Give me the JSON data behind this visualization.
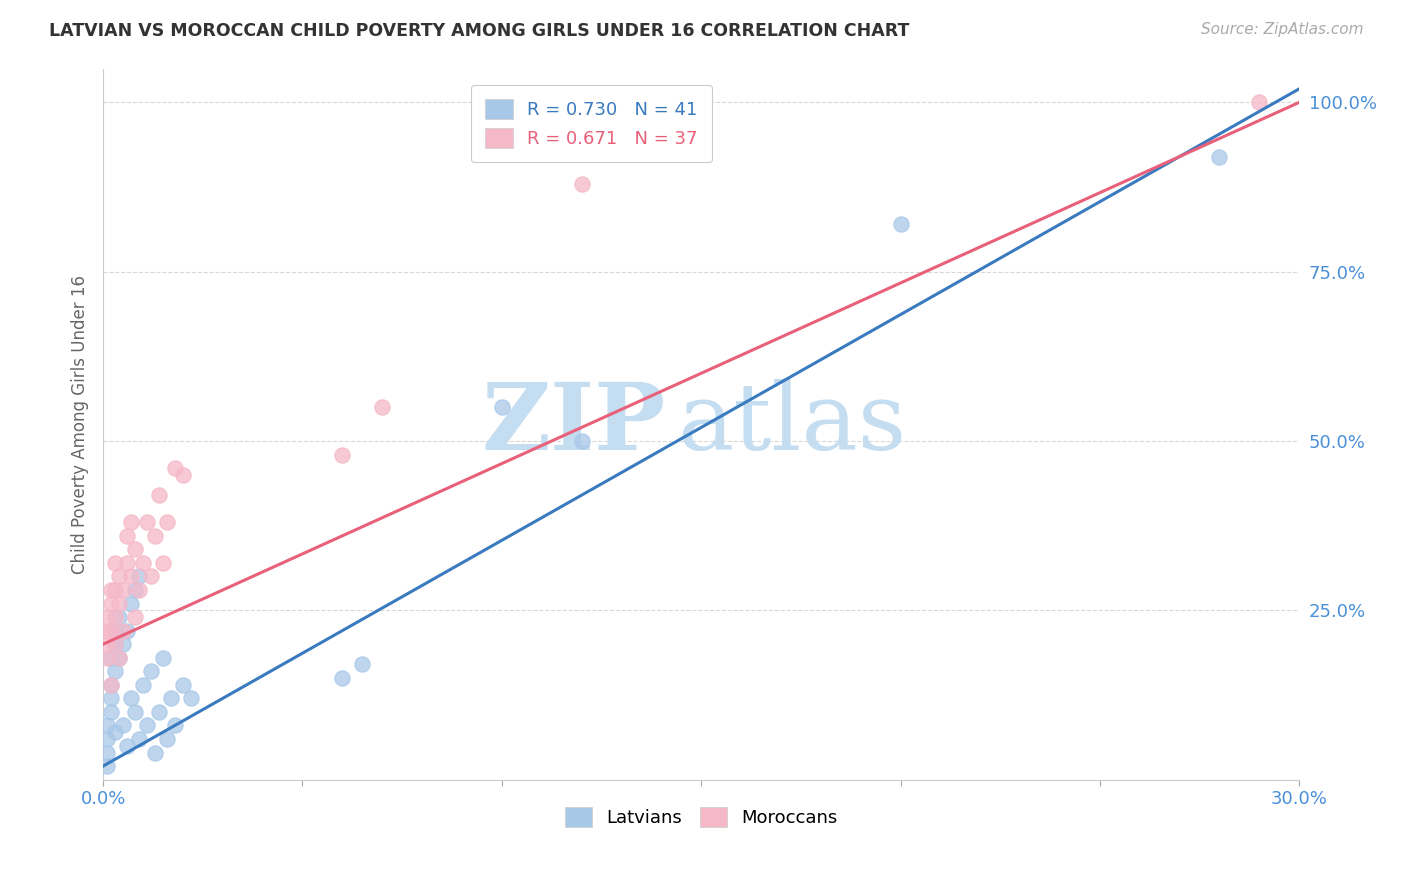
{
  "title": "LATVIAN VS MOROCCAN CHILD POVERTY AMONG GIRLS UNDER 16 CORRELATION CHART",
  "source": "Source: ZipAtlas.com",
  "ylabel": "Child Poverty Among Girls Under 16",
  "xlim": [
    0.0,
    0.3
  ],
  "ylim": [
    0.0,
    1.05
  ],
  "xticks": [
    0.0,
    0.05,
    0.1,
    0.15,
    0.2,
    0.25,
    0.3
  ],
  "xticklabels": [
    "0.0%",
    "",
    "",
    "",
    "",
    "",
    "30.0%"
  ],
  "yticks": [
    0.0,
    0.25,
    0.5,
    0.75,
    1.0
  ],
  "yticklabels": [
    "",
    "25.0%",
    "50.0%",
    "75.0%",
    "100.0%"
  ],
  "latvian_color": "#a8c8e8",
  "moroccan_color": "#f5b8c8",
  "latvian_line_color": "#3a7abf",
  "moroccan_line_color": "#e8607a",
  "r_latvian": 0.73,
  "n_latvian": 41,
  "r_moroccan": 0.671,
  "n_moroccan": 37,
  "watermark_zip": "ZIP",
  "watermark_atlas": "atlas",
  "latvian_points": [
    [
      0.001,
      0.02
    ],
    [
      0.001,
      0.04
    ],
    [
      0.001,
      0.06
    ],
    [
      0.001,
      0.08
    ],
    [
      0.002,
      0.1
    ],
    [
      0.002,
      0.12
    ],
    [
      0.002,
      0.14
    ],
    [
      0.002,
      0.18
    ],
    [
      0.003,
      0.16
    ],
    [
      0.003,
      0.2
    ],
    [
      0.003,
      0.22
    ],
    [
      0.003,
      0.07
    ],
    [
      0.004,
      0.18
    ],
    [
      0.004,
      0.24
    ],
    [
      0.005,
      0.08
    ],
    [
      0.005,
      0.2
    ],
    [
      0.006,
      0.22
    ],
    [
      0.006,
      0.05
    ],
    [
      0.007,
      0.26
    ],
    [
      0.007,
      0.12
    ],
    [
      0.008,
      0.1
    ],
    [
      0.008,
      0.28
    ],
    [
      0.009,
      0.06
    ],
    [
      0.009,
      0.3
    ],
    [
      0.01,
      0.14
    ],
    [
      0.011,
      0.08
    ],
    [
      0.012,
      0.16
    ],
    [
      0.013,
      0.04
    ],
    [
      0.014,
      0.1
    ],
    [
      0.015,
      0.18
    ],
    [
      0.016,
      0.06
    ],
    [
      0.017,
      0.12
    ],
    [
      0.018,
      0.08
    ],
    [
      0.02,
      0.14
    ],
    [
      0.022,
      0.12
    ],
    [
      0.06,
      0.15
    ],
    [
      0.065,
      0.17
    ],
    [
      0.1,
      0.55
    ],
    [
      0.12,
      0.5
    ],
    [
      0.2,
      0.82
    ],
    [
      0.28,
      0.92
    ]
  ],
  "moroccan_points": [
    [
      0.001,
      0.18
    ],
    [
      0.001,
      0.2
    ],
    [
      0.001,
      0.22
    ],
    [
      0.001,
      0.24
    ],
    [
      0.002,
      0.14
    ],
    [
      0.002,
      0.22
    ],
    [
      0.002,
      0.26
    ],
    [
      0.002,
      0.28
    ],
    [
      0.003,
      0.2
    ],
    [
      0.003,
      0.24
    ],
    [
      0.003,
      0.28
    ],
    [
      0.003,
      0.32
    ],
    [
      0.004,
      0.18
    ],
    [
      0.004,
      0.26
    ],
    [
      0.004,
      0.3
    ],
    [
      0.005,
      0.22
    ],
    [
      0.005,
      0.28
    ],
    [
      0.006,
      0.32
    ],
    [
      0.006,
      0.36
    ],
    [
      0.007,
      0.3
    ],
    [
      0.007,
      0.38
    ],
    [
      0.008,
      0.34
    ],
    [
      0.008,
      0.24
    ],
    [
      0.009,
      0.28
    ],
    [
      0.01,
      0.32
    ],
    [
      0.011,
      0.38
    ],
    [
      0.012,
      0.3
    ],
    [
      0.013,
      0.36
    ],
    [
      0.014,
      0.42
    ],
    [
      0.015,
      0.32
    ],
    [
      0.016,
      0.38
    ],
    [
      0.018,
      0.46
    ],
    [
      0.02,
      0.45
    ],
    [
      0.06,
      0.48
    ],
    [
      0.07,
      0.55
    ],
    [
      0.12,
      0.88
    ],
    [
      0.29,
      1.0
    ]
  ],
  "background_color": "#ffffff",
  "grid_color": "#d8d8d8"
}
